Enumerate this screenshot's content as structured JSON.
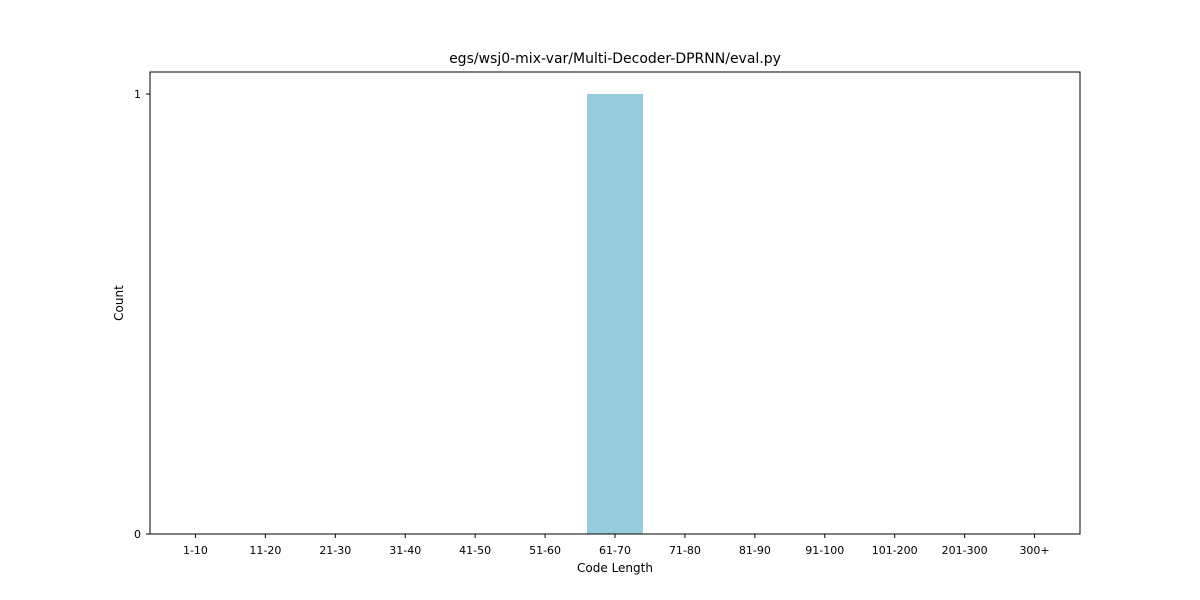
{
  "chart_data": {
    "type": "bar",
    "title": "egs/wsj0-mix-var/Multi-Decoder-DPRNN/eval.py",
    "xlabel": "Code Length",
    "ylabel": "Count",
    "categories": [
      "1-10",
      "11-20",
      "21-30",
      "31-40",
      "41-50",
      "51-60",
      "61-70",
      "71-80",
      "81-90",
      "91-100",
      "101-200",
      "201-300",
      "300+"
    ],
    "values": [
      0,
      0,
      0,
      0,
      0,
      0,
      1,
      0,
      0,
      0,
      0,
      0,
      0
    ],
    "ylim": [
      0,
      1.05
    ],
    "yticks": [
      0,
      1
    ],
    "bar_color": "#96cadd",
    "grid": false,
    "legend": "none"
  }
}
